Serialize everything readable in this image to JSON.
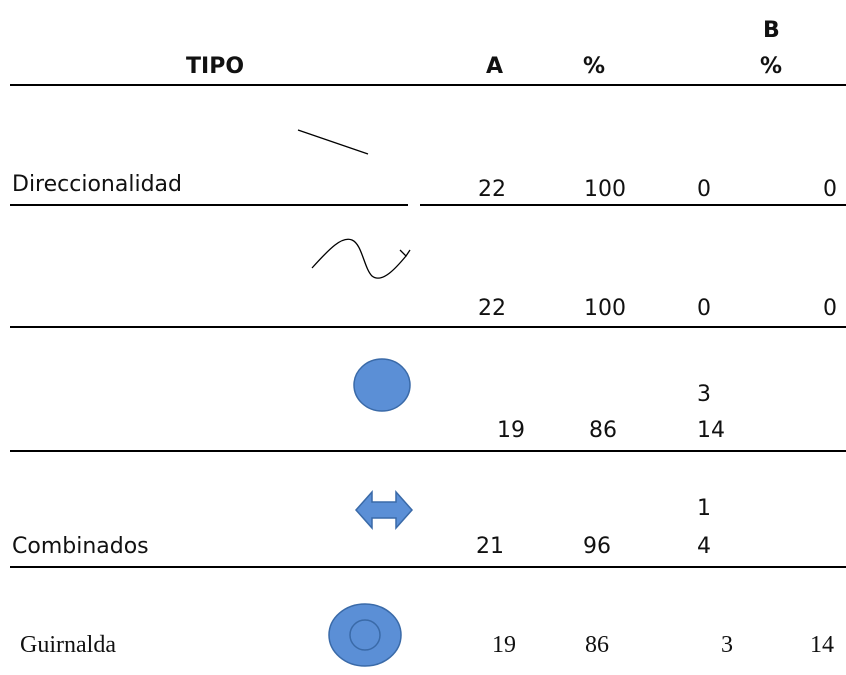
{
  "header": {
    "tipo": "TIPO",
    "a": "A",
    "pct_a": "%",
    "b": "B",
    "pct_b": "%"
  },
  "rows": [
    {
      "label": "Direccionalidad",
      "icon": "line-icon",
      "a": "22",
      "pct_a": "100",
      "b": "0",
      "pct_b": "0"
    },
    {
      "label": "",
      "icon": "wave-arrow-icon",
      "a": "22",
      "pct_a": "100",
      "b": "0",
      "pct_b": "0"
    },
    {
      "label": "",
      "icon": "circle-icon",
      "a": "19",
      "pct_a": "86",
      "b_top": "3",
      "b": "14"
    },
    {
      "label": "Combinados",
      "icon": "double-arrow-icon",
      "a": "21",
      "pct_a": "96",
      "b_top": "1",
      "b": "4"
    },
    {
      "label": "Guirnalda",
      "icon": "ring-icon",
      "a": "19",
      "pct_a": "86",
      "b": "3",
      "pct_b": "14"
    }
  ],
  "colors": {
    "shape_fill": "#5B8FD6",
    "shape_stroke": "#3A6AA8",
    "rule": "#000000"
  }
}
